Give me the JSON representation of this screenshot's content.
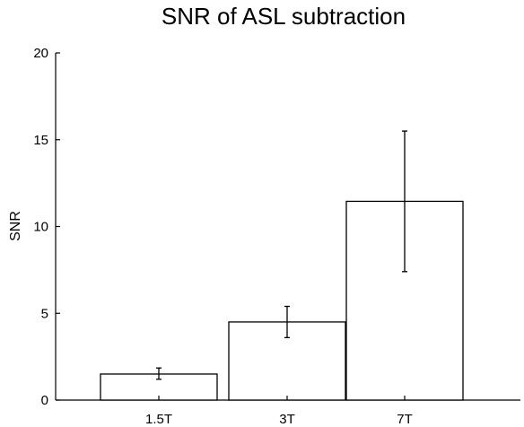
{
  "chart_data": {
    "type": "bar",
    "title": "SNR of ASL subtraction",
    "xlabel": "",
    "ylabel": "SNR",
    "categories": [
      "1.5T",
      "3T",
      "7T"
    ],
    "values": [
      1.5,
      4.5,
      11.45
    ],
    "error_low": [
      1.2,
      3.6,
      7.4
    ],
    "error_high": [
      1.85,
      5.4,
      15.5
    ],
    "ylim": [
      0,
      20
    ],
    "yticks": [
      0,
      5,
      10,
      15,
      20
    ],
    "grid": false,
    "bar_fill": "#ffffff",
    "bar_stroke": "#000000"
  }
}
